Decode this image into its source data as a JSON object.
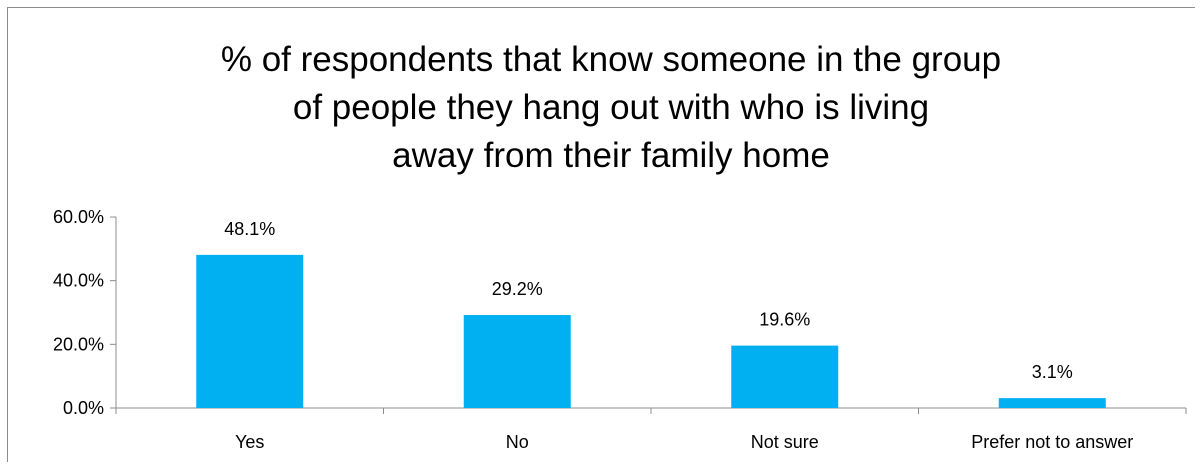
{
  "chart_data": {
    "type": "bar",
    "title": "% of respondents that know someone in the group of people they hang out with who is living away from their family home",
    "categories": [
      "Yes",
      "No",
      "Not sure",
      "Prefer not to answer"
    ],
    "values": [
      48.1,
      29.2,
      19.6,
      3.1
    ],
    "data_labels": [
      "48.1%",
      "29.2%",
      "19.6%",
      "3.1%"
    ],
    "y_ticks": [
      0,
      20,
      40,
      60
    ],
    "y_tick_labels": [
      "0.0%",
      "20.0%",
      "40.0%",
      "60.0%"
    ],
    "ylim": [
      0,
      60
    ],
    "xlabel": "",
    "ylabel": "",
    "grid": false,
    "legend": "none",
    "bar_color": "#00b0f0"
  }
}
